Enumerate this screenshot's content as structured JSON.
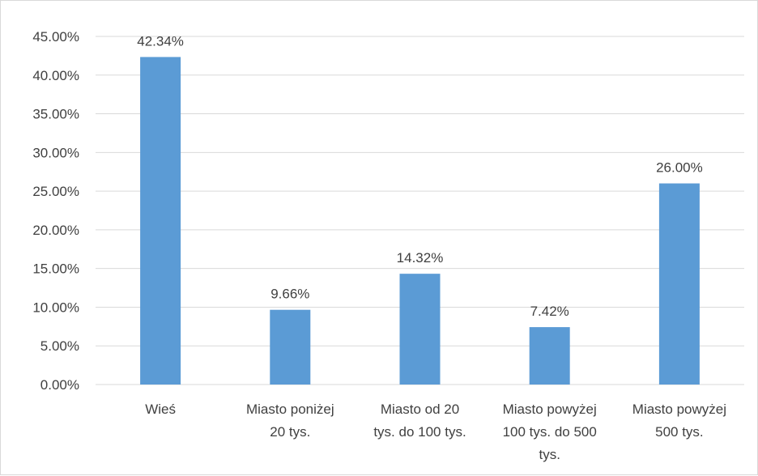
{
  "chart_data": {
    "type": "bar",
    "categories": [
      [
        "Wieś"
      ],
      [
        "Miasto poniżej",
        "20 tys."
      ],
      [
        "Miasto od 20",
        "tys. do 100 tys."
      ],
      [
        "Miasto powyżej",
        "100 tys. do 500",
        "tys."
      ],
      [
        "Miasto powyżej",
        "500 tys."
      ]
    ],
    "values": [
      42.34,
      9.66,
      14.32,
      7.42,
      26.0
    ],
    "data_labels": [
      "42.34%",
      "9.66%",
      "14.32%",
      "7.42%",
      "26.00%"
    ],
    "yticks": [
      0,
      5,
      10,
      15,
      20,
      25,
      30,
      35,
      40,
      45
    ],
    "ytick_labels": [
      "0.00%",
      "5.00%",
      "10.00%",
      "15.00%",
      "20.00%",
      "25.00%",
      "30.00%",
      "35.00%",
      "40.00%",
      "45.00%"
    ],
    "ylim": [
      0,
      45
    ],
    "title": "",
    "xlabel": "",
    "ylabel": "",
    "grid": true,
    "legend": "none",
    "bar_color": "#5b9bd5",
    "grid_color": "#d9d9d9"
  }
}
